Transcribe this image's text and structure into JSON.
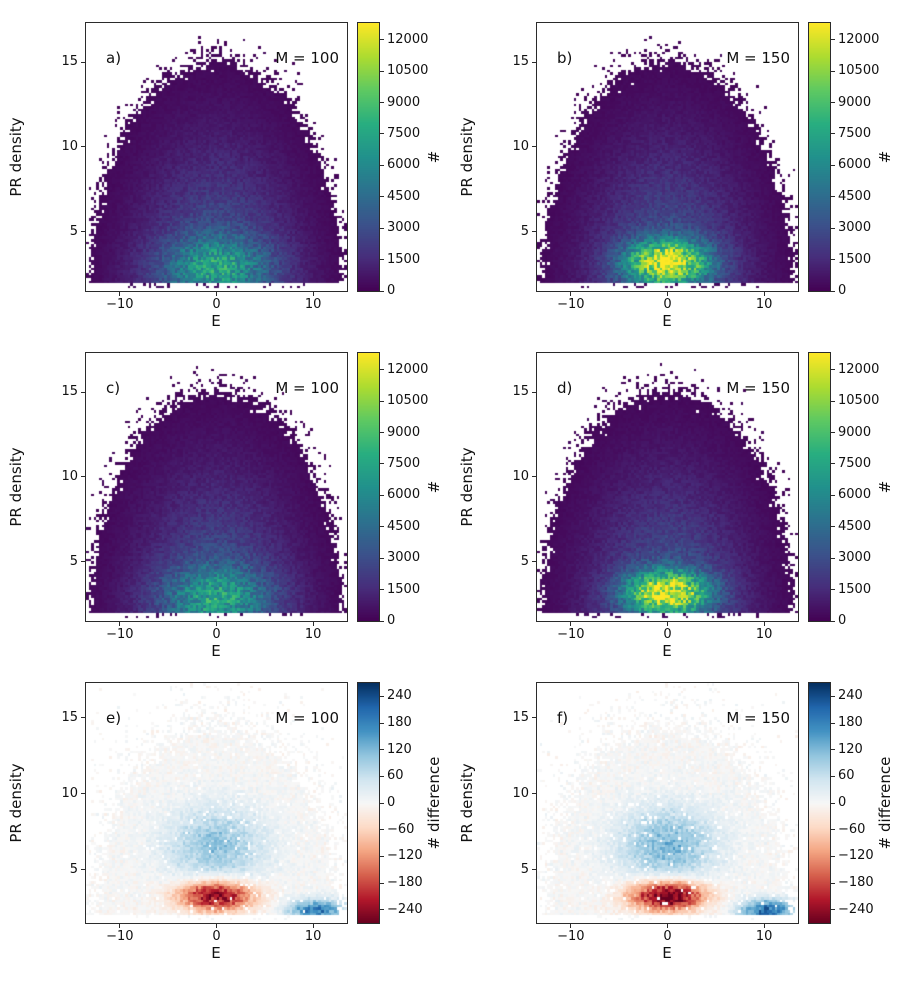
{
  "figure": {
    "background": "#ffffff",
    "text_color": "#111111",
    "axis_color": "#2b2b2b"
  },
  "colormaps": {
    "viridis": [
      "#440154",
      "#472d7b",
      "#3b528b",
      "#2c728e",
      "#21918c",
      "#28ae80",
      "#5ec962",
      "#addc30",
      "#fde725"
    ],
    "rdbu": [
      "#67001f",
      "#b2182b",
      "#d6604d",
      "#f4a582",
      "#fddbc7",
      "#f7f7f7",
      "#d1e5f0",
      "#92c5de",
      "#4393c3",
      "#2166ac",
      "#053061"
    ]
  },
  "chart_data": [
    {
      "type": "heatmap",
      "panel_label": "a)",
      "m_label": "M = 100",
      "xlabel": "E",
      "ylabel": "PR density",
      "xlim": [
        -13.5,
        13.5
      ],
      "ylim": [
        1.5,
        17.3
      ],
      "xticks": [
        -10,
        0,
        10
      ],
      "yticks": [
        5,
        10,
        15
      ],
      "colormap": "viridis",
      "colorbar_label": "#",
      "colorbar_ticks": [
        0,
        1500,
        3000,
        4500,
        6000,
        7500,
        9000,
        10500,
        12000
      ],
      "vmin": 0,
      "vmax": 12800,
      "seed": 11,
      "density_model": {
        "kind": "dome_histogram",
        "dome_center_E": 0,
        "dome_base_P": 1.6,
        "dome_radius_E": 13.0,
        "dome_radius_P": 13.4,
        "base_amp": 3800,
        "base_falloff": 2.6,
        "peak_amp": 3900,
        "peak_E": 0,
        "peak_P": 3.0,
        "peak_sigma_E": 4.0,
        "peak_sigma_P": 1.15
      }
    },
    {
      "type": "heatmap",
      "panel_label": "b)",
      "m_label": "M = 150",
      "xlabel": "E",
      "ylabel": "PR density",
      "xlim": [
        -13.5,
        13.5
      ],
      "ylim": [
        1.5,
        17.3
      ],
      "xticks": [
        -10,
        0,
        10
      ],
      "yticks": [
        5,
        10,
        15
      ],
      "colormap": "viridis",
      "colorbar_label": "#",
      "colorbar_ticks": [
        0,
        1500,
        3000,
        4500,
        6000,
        7500,
        9000,
        10500,
        12000
      ],
      "vmin": 0,
      "vmax": 12800,
      "seed": 12,
      "density_model": {
        "kind": "dome_histogram",
        "dome_center_E": 0,
        "dome_base_P": 1.6,
        "dome_radius_E": 13.0,
        "dome_radius_P": 13.4,
        "base_amp": 3800,
        "base_falloff": 2.6,
        "peak_amp": 9800,
        "peak_E": 0,
        "peak_P": 3.2,
        "peak_sigma_E": 3.0,
        "peak_sigma_P": 0.85
      }
    },
    {
      "type": "heatmap",
      "panel_label": "c)",
      "m_label": "M = 100",
      "xlabel": "E",
      "ylabel": "PR density",
      "xlim": [
        -13.5,
        13.5
      ],
      "ylim": [
        1.5,
        17.3
      ],
      "xticks": [
        -10,
        0,
        10
      ],
      "yticks": [
        5,
        10,
        15
      ],
      "colormap": "viridis",
      "colorbar_label": "#",
      "colorbar_ticks": [
        0,
        1500,
        3000,
        4500,
        6000,
        7500,
        9000,
        10500,
        12000
      ],
      "vmin": 0,
      "vmax": 12800,
      "seed": 13,
      "density_model": {
        "kind": "dome_histogram",
        "dome_center_E": 0,
        "dome_base_P": 1.6,
        "dome_radius_E": 13.0,
        "dome_radius_P": 13.4,
        "base_amp": 3800,
        "base_falloff": 2.6,
        "peak_amp": 3900,
        "peak_E": 0,
        "peak_P": 3.0,
        "peak_sigma_E": 4.0,
        "peak_sigma_P": 1.15
      }
    },
    {
      "type": "heatmap",
      "panel_label": "d)",
      "m_label": "M = 150",
      "xlabel": "E",
      "ylabel": "PR density",
      "xlim": [
        -13.5,
        13.5
      ],
      "ylim": [
        1.5,
        17.3
      ],
      "xticks": [
        -10,
        0,
        10
      ],
      "yticks": [
        5,
        10,
        15
      ],
      "colormap": "viridis",
      "colorbar_label": "#",
      "colorbar_ticks": [
        0,
        1500,
        3000,
        4500,
        6000,
        7500,
        9000,
        10500,
        12000
      ],
      "vmin": 0,
      "vmax": 12800,
      "seed": 14,
      "density_model": {
        "kind": "dome_histogram",
        "dome_center_E": 0,
        "dome_base_P": 1.6,
        "dome_radius_E": 13.0,
        "dome_radius_P": 13.4,
        "base_amp": 3800,
        "base_falloff": 2.6,
        "peak_amp": 9800,
        "peak_E": 0,
        "peak_P": 3.2,
        "peak_sigma_E": 3.0,
        "peak_sigma_P": 0.85
      }
    },
    {
      "type": "heatmap",
      "panel_label": "e)",
      "m_label": "M = 100",
      "xlabel": "E",
      "ylabel": "PR density",
      "xlim": [
        -13.5,
        13.5
      ],
      "ylim": [
        1.5,
        17.3
      ],
      "xticks": [
        -10,
        0,
        10
      ],
      "yticks": [
        5,
        10,
        15
      ],
      "colormap": "rdbu",
      "colorbar_label": "# difference",
      "colorbar_ticks": [
        240,
        180,
        120,
        60,
        0,
        -60,
        -120,
        -180,
        -240
      ],
      "vmin": -270,
      "vmax": 270,
      "seed": 15,
      "density_model": {
        "kind": "dome_difference",
        "dome_center_E": 0,
        "dome_base_P": 1.6,
        "dome_radius_E": 13.0,
        "dome_radius_P": 13.4,
        "noise_amp": 14,
        "negative_blob": {
          "amp": -265,
          "E": 0,
          "P": 3.3,
          "sigma_E": 2.7,
          "sigma_P": 0.7
        },
        "positive_blob": {
          "amp": 105,
          "E": 0,
          "P": 6.6,
          "sigma_E": 3.6,
          "sigma_P": 1.8
        },
        "side_blob": {
          "amp": 190,
          "E": 10.3,
          "P": 2.35,
          "sigma_E": 2.0,
          "sigma_P": 0.5
        }
      }
    },
    {
      "type": "heatmap",
      "panel_label": "f)",
      "m_label": "M = 150",
      "xlabel": "E",
      "ylabel": "PR density",
      "xlim": [
        -13.5,
        13.5
      ],
      "ylim": [
        1.5,
        17.3
      ],
      "xticks": [
        -10,
        0,
        10
      ],
      "yticks": [
        5,
        10,
        15
      ],
      "colormap": "rdbu",
      "colorbar_label": "# difference",
      "colorbar_ticks": [
        240,
        180,
        120,
        60,
        0,
        -60,
        -120,
        -180,
        -240
      ],
      "vmin": -270,
      "vmax": 270,
      "seed": 16,
      "density_model": {
        "kind": "dome_difference",
        "dome_center_E": 0,
        "dome_base_P": 1.6,
        "dome_radius_E": 13.0,
        "dome_radius_P": 13.4,
        "noise_amp": 14,
        "negative_blob": {
          "amp": -300,
          "E": 0,
          "P": 3.3,
          "sigma_E": 2.7,
          "sigma_P": 0.7
        },
        "positive_blob": {
          "amp": 120,
          "E": 0,
          "P": 6.6,
          "sigma_E": 3.6,
          "sigma_P": 1.8
        },
        "side_blob": {
          "amp": 210,
          "E": 10.3,
          "P": 2.35,
          "sigma_E": 2.0,
          "sigma_P": 0.5
        }
      }
    }
  ]
}
